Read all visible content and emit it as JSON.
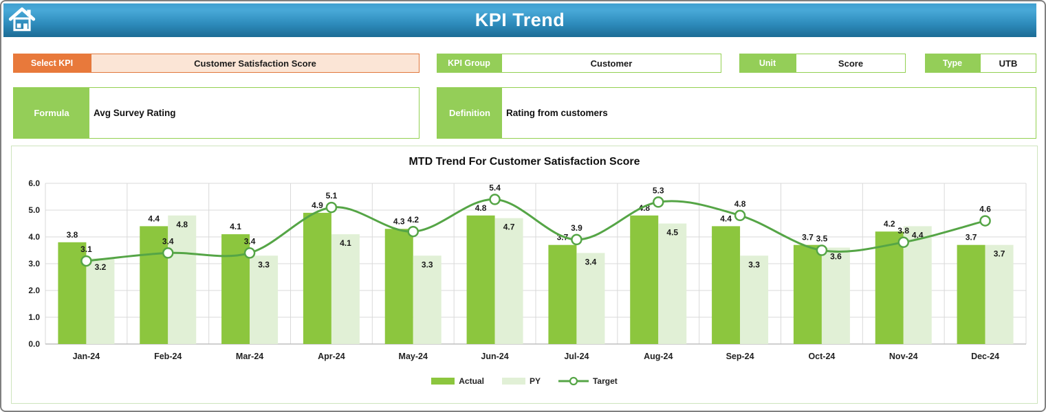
{
  "header": {
    "title": "KPI Trend"
  },
  "fields": {
    "select_kpi": {
      "label": "Select KPI",
      "value": "Customer Satisfaction Score"
    },
    "kpi_group": {
      "label": "KPI Group",
      "value": "Customer"
    },
    "unit": {
      "label": "Unit",
      "value": "Score"
    },
    "type": {
      "label": "Type",
      "value": "UTB"
    },
    "formula": {
      "label": "Formula",
      "value": "Avg Survey Rating"
    },
    "definition": {
      "label": "Definition",
      "value": "Rating from customers"
    }
  },
  "chart_data": {
    "type": "combo-bar-line",
    "title": "MTD Trend For Customer Satisfaction Score",
    "categories": [
      "Jan-24",
      "Feb-24",
      "Mar-24",
      "Apr-24",
      "May-24",
      "Jun-24",
      "Jul-24",
      "Aug-24",
      "Sep-24",
      "Oct-24",
      "Nov-24",
      "Dec-24"
    ],
    "series": [
      {
        "name": "Actual",
        "kind": "bar",
        "color": "#8cc63e",
        "values": [
          3.8,
          4.4,
          4.1,
          4.9,
          4.3,
          4.8,
          3.7,
          4.8,
          4.4,
          3.7,
          4.2,
          3.7
        ]
      },
      {
        "name": "PY",
        "kind": "bar",
        "color": "#e1f0d6",
        "values": [
          3.2,
          4.8,
          3.3,
          4.1,
          3.3,
          4.7,
          3.4,
          4.5,
          3.3,
          3.6,
          4.4,
          3.7
        ]
      },
      {
        "name": "Target",
        "kind": "line",
        "color": "#55a546",
        "marker": "circle",
        "values": [
          3.1,
          3.4,
          3.4,
          5.1,
          4.2,
          5.4,
          3.9,
          5.3,
          4.8,
          3.5,
          3.8,
          4.6
        ]
      }
    ],
    "ylim": [
      0,
      6
    ],
    "ytick_step": 1,
    "ytick_labels": [
      "0.0",
      "1.0",
      "2.0",
      "3.0",
      "4.0",
      "5.0",
      "6.0"
    ],
    "grid": true,
    "legend_position": "bottom",
    "data_labels": true
  },
  "colors": {
    "header_top": "#3fa0d0",
    "header_bottom": "#1c6c95",
    "accent_orange": "#e8793b",
    "accent_orange_fill": "#fbe5d6",
    "accent_green": "#92d050",
    "gridline": "#d9d9d9",
    "axis": "#bfbfbf",
    "label_text": "#1a1a1a"
  }
}
